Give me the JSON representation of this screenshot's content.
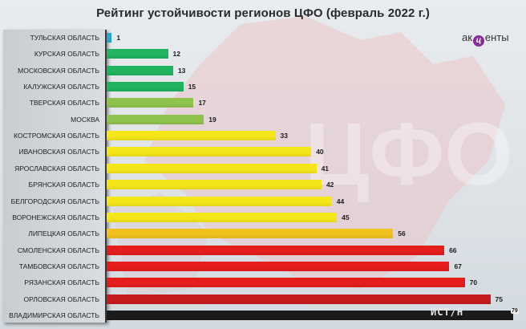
{
  "header": {
    "title": "Рейтинг устойчивости регионов ЦФО (февраль 2022 г.)"
  },
  "logo": {
    "left": "ак",
    "mid": "ц",
    "right": "енты"
  },
  "watermark": {
    "text": "ИСТ/Н",
    "badge": "79"
  },
  "colors": {
    "blue": "#2aa7d1",
    "green": "#21b35f",
    "lightgreen": "#8fc34d",
    "yellow": "#f5e61a",
    "orange": "#f1c11d",
    "red": "#e51d1d",
    "darkred": "#c81b1f",
    "black": "#1b1b1b"
  },
  "chart_data": {
    "type": "bar",
    "orientation": "horizontal",
    "title": "Рейтинг устойчивости регионов ЦФО (февраль 2022 г.)",
    "xlabel": "",
    "ylabel": "",
    "grid": false,
    "legend": null,
    "categories": [
      "ТУЛЬСКАЯ ОБЛАСТЬ",
      "КУРСКАЯ ОБЛАСТЬ",
      "МОСКОВСКАЯ ОБЛАСТЬ",
      "КАЛУЖСКАЯ ОБЛАСТЬ",
      "ТВЕРСКАЯ ОБЛАСТЬ",
      "МОСКВА",
      "КОСТРОМСКАЯ ОБЛАСТЬ",
      "ИВАНОВСКАЯ ОБЛАСТЬ",
      "ЯРОСЛАВСКАЯ ОБЛАСТЬ",
      "БРЯНСКАЯ ОБЛАСТЬ",
      "БЕЛГОРОДСКАЯ ОБЛАСТЬ",
      "ВОРОНЕЖСКАЯ ОБЛАСТЬ",
      "ЛИПЕЦКАЯ ОБЛАСТЬ",
      "СМОЛЕНСКАЯ ОБЛАСТЬ",
      "ТАМБОВСКАЯ ОБЛАСТЬ",
      "РЯЗАНСКАЯ ОБЛАСТЬ",
      "ОРЛОВСКАЯ ОБЛАСТЬ",
      "ВЛАДИМИРСКАЯ ОБЛАСТЬ"
    ],
    "values": [
      1,
      12,
      13,
      15,
      17,
      19,
      33,
      40,
      41,
      42,
      44,
      45,
      56,
      66,
      67,
      70,
      75,
      79
    ],
    "bar_colors": [
      "#2aa7d1",
      "#21b35f",
      "#21b35f",
      "#21b35f",
      "#8fc34d",
      "#8fc34d",
      "#f5e61a",
      "#f5e61a",
      "#f5e61a",
      "#f5e61a",
      "#f5e61a",
      "#f5e61a",
      "#f1c11d",
      "#e51d1d",
      "#e51d1d",
      "#e51d1d",
      "#c81b1f",
      "#1b1b1b"
    ],
    "value_labels": [
      "1",
      "12",
      "13",
      "15",
      "17",
      "19",
      "33",
      "40",
      "41",
      "42",
      "44",
      "45",
      "56",
      "66",
      "67",
      "70",
      "75",
      "79"
    ],
    "xlim": [
      0,
      80
    ]
  }
}
